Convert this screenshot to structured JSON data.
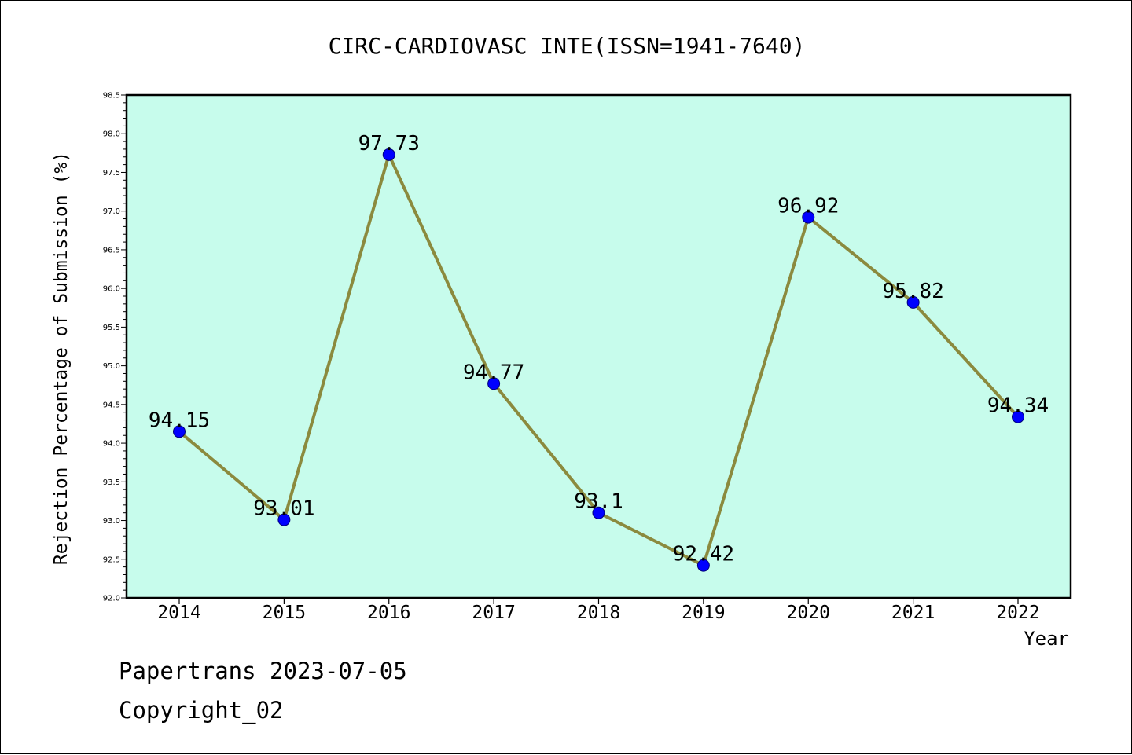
{
  "chart_data": {
    "type": "line",
    "title": "CIRC-CARDIOVASC INTE(ISSN=1941-7640)",
    "xlabel": "Year",
    "ylabel": "Rejection Percentage of Submission (%)",
    "categories": [
      "2014",
      "2015",
      "2016",
      "2017",
      "2018",
      "2019",
      "2020",
      "2021",
      "2022"
    ],
    "values": [
      94.15,
      93.01,
      97.73,
      94.77,
      93.1,
      92.42,
      96.92,
      95.82,
      94.34
    ],
    "data_labels": [
      "94.15",
      "93.01",
      "97.73",
      "94.77",
      "93.1",
      "92.42",
      "96.92",
      "95.82",
      "94.34"
    ],
    "ylim": [
      92.0,
      98.5
    ],
    "yticks": [
      "92.0",
      "92.5",
      "93.0",
      "93.5",
      "94.0",
      "94.5",
      "95.0",
      "95.5",
      "96.0",
      "96.5",
      "97.0",
      "97.5",
      "98.0",
      "98.5"
    ],
    "grid": false,
    "colors": {
      "plot_background": "#c7fcec",
      "line": "#8b8a3e",
      "marker": "#0000ff"
    }
  },
  "footer": {
    "line1": "Papertrans 2023-07-05",
    "line2": "Copyright_02"
  }
}
